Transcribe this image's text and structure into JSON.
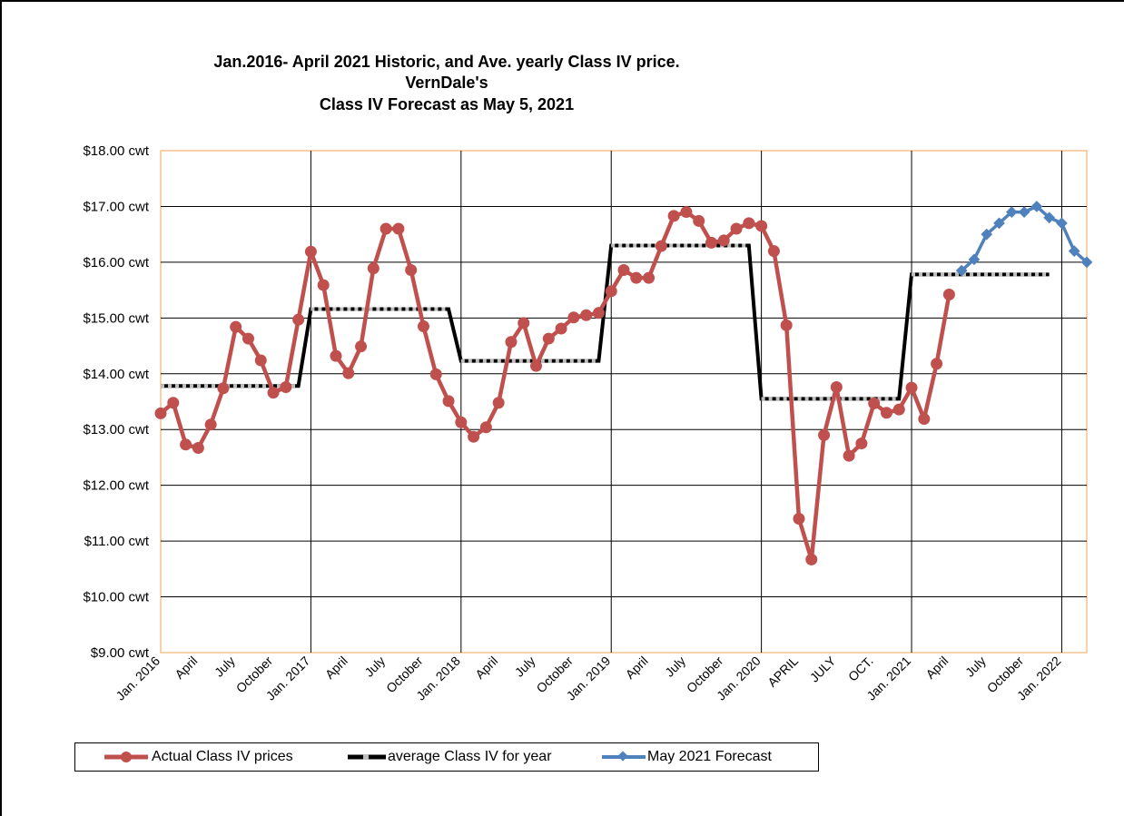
{
  "chart_data": {
    "type": "line",
    "title_lines": [
      "Jan.2016- April 2021 Historic, and Ave. yearly Class IV price.",
      "VernDale's",
      "Class IV Forecast as May 5, 2021"
    ],
    "y_tick_labels": [
      "$18.00 cwt",
      "$17.00 cwt",
      "$16.00 cwt",
      "$15.00 cwt",
      "$14.00 cwt",
      "$13.00 cwt",
      "$12.00 cwt",
      "$11.00 cwt",
      "$10.00 cwt",
      "$9.00 cwt"
    ],
    "ylim": [
      9,
      18
    ],
    "x_index_range": [
      0,
      74
    ],
    "x_tick_labels": [
      {
        "i": 0,
        "label": "Jan. 2016"
      },
      {
        "i": 3,
        "label": "April"
      },
      {
        "i": 6,
        "label": "July"
      },
      {
        "i": 9,
        "label": "October"
      },
      {
        "i": 12,
        "label": "Jan. 2017"
      },
      {
        "i": 15,
        "label": "April"
      },
      {
        "i": 18,
        "label": "July"
      },
      {
        "i": 21,
        "label": "October"
      },
      {
        "i": 24,
        "label": "Jan. 2018"
      },
      {
        "i": 27,
        "label": "April"
      },
      {
        "i": 30,
        "label": "July"
      },
      {
        "i": 33,
        "label": "October"
      },
      {
        "i": 36,
        "label": "Jan. 2019"
      },
      {
        "i": 39,
        "label": "April"
      },
      {
        "i": 42,
        "label": "July"
      },
      {
        "i": 45,
        "label": "October"
      },
      {
        "i": 48,
        "label": "Jan. 2020"
      },
      {
        "i": 51,
        "label": "APRIL"
      },
      {
        "i": 54,
        "label": "JULY"
      },
      {
        "i": 57,
        "label": "OCT."
      },
      {
        "i": 60,
        "label": "Jan. 2021"
      },
      {
        "i": 63,
        "label": "April"
      },
      {
        "i": 66,
        "label": "July"
      },
      {
        "i": 69,
        "label": "October"
      },
      {
        "i": 72,
        "label": "Jan. 2022"
      }
    ],
    "vertical_grid_at": [
      12,
      24,
      36,
      48,
      60,
      72
    ],
    "series": [
      {
        "name": "Actual Class IV prices",
        "color": "#C0504D",
        "start_index": 0,
        "values": [
          13.29,
          13.48,
          12.73,
          12.67,
          13.09,
          13.74,
          14.84,
          14.63,
          14.24,
          13.66,
          13.76,
          14.97,
          16.19,
          15.59,
          14.32,
          14.01,
          14.49,
          15.89,
          16.6,
          16.6,
          15.86,
          14.85,
          13.99,
          13.51,
          13.13,
          12.87,
          13.04,
          13.48,
          14.57,
          14.91,
          14.14,
          14.63,
          14.81,
          15.01,
          15.05,
          15.09,
          15.48,
          15.86,
          15.72,
          15.72,
          16.29,
          16.83,
          16.9,
          16.74,
          16.35,
          16.39,
          16.6,
          16.7,
          16.65,
          16.2,
          14.87,
          11.4,
          10.67,
          12.9,
          13.76,
          12.53,
          12.75,
          13.47,
          13.3,
          13.36,
          13.75,
          13.19,
          14.18,
          15.42
        ]
      },
      {
        "name": "average Class IV  for  year",
        "color": "#000000",
        "segments": [
          {
            "from": 0,
            "to": 11,
            "value": 13.78
          },
          {
            "from": 12,
            "to": 23,
            "value": 15.16
          },
          {
            "from": 24,
            "to": 35,
            "value": 14.23
          },
          {
            "from": 36,
            "to": 47,
            "value": 16.3
          },
          {
            "from": 48,
            "to": 59,
            "value": 13.55
          },
          {
            "from": 60,
            "to": 71,
            "value": 15.78
          }
        ]
      },
      {
        "name": "May 2021 Forecast",
        "color": "#4F81BD",
        "start_index": 64,
        "values": [
          15.85,
          16.05,
          16.5,
          16.7,
          16.9,
          16.9,
          17.0,
          16.8,
          16.7,
          16.2,
          16.0
        ]
      }
    ],
    "legend_position": "bottom",
    "grid": true
  }
}
